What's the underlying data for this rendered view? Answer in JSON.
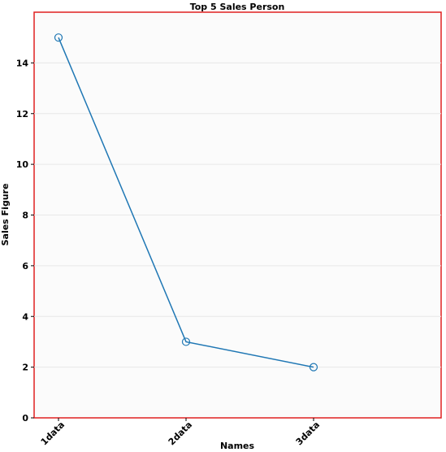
{
  "chart_data": {
    "type": "line",
    "title": "Top 5 Sales Person",
    "xlabel": "Names",
    "ylabel": "Sales Figure",
    "categories": [
      "1data",
      "2data",
      "3data"
    ],
    "series": [
      {
        "values": [
          15,
          3,
          2
        ]
      }
    ],
    "ylim": [
      0,
      16
    ],
    "yticks": [
      0,
      2,
      4,
      6,
      8,
      10,
      12,
      14
    ],
    "grid": true,
    "colors": {
      "line": "#1f77b4",
      "frame": "#e02020",
      "plot_background": "#fbfbfb",
      "grid": "#e8e8e8"
    }
  }
}
